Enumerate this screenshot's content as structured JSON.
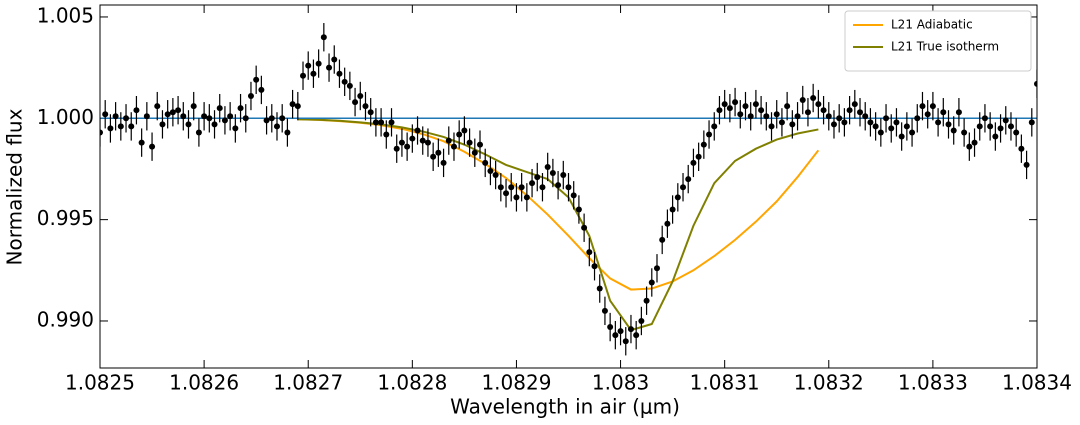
{
  "chart_data": {
    "type": "scatter",
    "xlabel": "Wavelength in air (μm)",
    "ylabel": "Normalized flux",
    "xlim": [
      1.0825,
      1.0834
    ],
    "ylim": [
      0.98768,
      1.00559
    ],
    "xticks": [
      1.0825,
      1.0826,
      1.0827,
      1.0828,
      1.0829,
      1.083,
      1.0831,
      1.0832,
      1.0833,
      1.0834
    ],
    "yticks": [
      {
        "value": 0.99,
        "label": "0.990"
      },
      0.995,
      {
        "value": 1,
        "label": "1.000"
      },
      1.005
    ],
    "hline": 1,
    "hline_color": "#1f77b4",
    "legend": "upper right",
    "points": {
      "color": "#000000",
      "yerr": 0.0007,
      "x": [
        1.0825,
        1.082505,
        1.08251,
        1.082515,
        1.08252,
        1.082525,
        1.08253,
        1.082535,
        1.08254,
        1.082545,
        1.08255,
        1.082555,
        1.08256,
        1.082565,
        1.08257,
        1.082575,
        1.08258,
        1.082585,
        1.08259,
        1.082595,
        1.0826,
        1.082605,
        1.08261,
        1.082615,
        1.08262,
        1.082625,
        1.08263,
        1.082635,
        1.08264,
        1.082645,
        1.08265,
        1.082655,
        1.08266,
        1.082665,
        1.08267,
        1.082675,
        1.08268,
        1.082685,
        1.08269,
        1.082695,
        1.0827,
        1.082705,
        1.08271,
        1.082715,
        1.08272,
        1.082725,
        1.08273,
        1.082735,
        1.08274,
        1.082745,
        1.08275,
        1.082755,
        1.08276,
        1.082765,
        1.08277,
        1.082775,
        1.08278,
        1.082785,
        1.08279,
        1.082795,
        1.0828,
        1.082805,
        1.08281,
        1.082815,
        1.08282,
        1.082825,
        1.08283,
        1.082835,
        1.08284,
        1.082845,
        1.08285,
        1.082855,
        1.08286,
        1.082865,
        1.08287,
        1.082875,
        1.08288,
        1.082885,
        1.08289,
        1.082895,
        1.0829,
        1.082905,
        1.08291,
        1.082915,
        1.08292,
        1.082925,
        1.08293,
        1.082935,
        1.08294,
        1.082945,
        1.08295,
        1.082955,
        1.08296,
        1.082965,
        1.08297,
        1.082975,
        1.08298,
        1.082985,
        1.08299,
        1.082995,
        1.083,
        1.083005,
        1.08301,
        1.083015,
        1.08302,
        1.083025,
        1.08303,
        1.083035,
        1.08304,
        1.083045,
        1.08305,
        1.083055,
        1.08306,
        1.083065,
        1.08307,
        1.083075,
        1.08308,
        1.083085,
        1.08309,
        1.083095,
        1.0831,
        1.083105,
        1.08311,
        1.083115,
        1.08312,
        1.083125,
        1.08313,
        1.083135,
        1.08314,
        1.083145,
        1.08315,
        1.083155,
        1.08316,
        1.083165,
        1.08317,
        1.083175,
        1.08318,
        1.083185,
        1.08319,
        1.083195,
        1.0832,
        1.083205,
        1.08321,
        1.083215,
        1.08322,
        1.083225,
        1.08323,
        1.083235,
        1.08324,
        1.083245,
        1.08325,
        1.083255,
        1.08326,
        1.083265,
        1.08327,
        1.083275,
        1.08328,
        1.083285,
        1.08329,
        1.083295,
        1.0833,
        1.083305,
        1.08331,
        1.083315,
        1.08332,
        1.083325,
        1.08333,
        1.083335,
        1.08334,
        1.083345,
        1.08335,
        1.083355,
        1.08336,
        1.083365,
        1.08337,
        1.083375,
        1.08338,
        1.083385,
        1.08339,
        1.083395,
        1.0834
      ],
      "values": [
        0.9993,
        1.0002,
        0.9995,
        1.0001,
        0.9996,
        1.0,
        0.9996,
        1.0004,
        0.9988,
        1.0001,
        0.9986,
        1.0006,
        0.9997,
        1.0002,
        1.0003,
        1.0004,
        1.0001,
        0.9997,
        1.0006,
        0.9993,
        1.0001,
        1.0,
        0.9997,
        1.0005,
        0.9999,
        1.0001,
        0.9995,
        1.0005,
        1.0,
        1.0011,
        1.0019,
        1.0014,
        0.9999,
        1.0,
        0.9996,
        1.0,
        0.9993,
        1.0007,
        1.0006,
        1.0021,
        1.0026,
        1.0022,
        1.0027,
        1.004,
        1.0025,
        1.0029,
        1.0022,
        1.0018,
        1.0016,
        1.0008,
        1.0011,
        1.0006,
        1.0003,
        0.9998,
        0.9998,
        0.9992,
        0.9998,
        0.9985,
        0.9988,
        0.9986,
        0.999,
        0.9994,
        0.9989,
        0.9988,
        0.9981,
        0.9983,
        0.9978,
        0.9989,
        0.9986,
        0.9992,
        0.9994,
        0.9988,
        0.9983,
        0.9987,
        0.9978,
        0.9974,
        0.9972,
        0.9966,
        0.9963,
        0.9966,
        0.9961,
        0.9966,
        0.9961,
        0.9968,
        0.9971,
        0.9966,
        0.9976,
        0.9973,
        0.9967,
        0.9972,
        0.9966,
        0.9962,
        0.9955,
        0.9946,
        0.9934,
        0.9927,
        0.9916,
        0.9905,
        0.9897,
        0.9893,
        0.9895,
        0.989,
        0.9896,
        0.9893,
        0.99,
        0.991,
        0.9919,
        0.9926,
        0.994,
        0.9948,
        0.9955,
        0.9961,
        0.9966,
        0.997,
        0.9978,
        0.9981,
        0.9987,
        0.9992,
        0.9996,
        1.0004,
        1.0007,
        1.0005,
        1.0008,
        1.0002,
        1.0006,
        1.0001,
        1.0007,
        1.0004,
        1.0001,
        0.9996,
        1.0002,
        0.9998,
        1.0006,
        0.9997,
        1.0001,
        1.0009,
        1.0003,
        1.001,
        1.0007,
        1.0004,
        1.0001,
        0.9997,
        1.0,
        0.9998,
        1.0004,
        1.0007,
        1.0003,
        1.0001,
        0.9998,
        0.9996,
        0.9993,
        1.0,
        0.9995,
        0.9998,
        0.9991,
        0.9996,
        0.9993,
        1.0,
        1.0006,
        1.0002,
        1.0006,
        0.9998,
        1.0003,
        0.9997,
        0.9994,
        1.0003,
        0.9993,
        0.9986,
        0.9988,
        0.9996,
        1.0,
        0.9996,
        0.9991,
        0.9995,
        0.9999,
        0.9996,
        0.9993,
        0.9985,
        0.9977,
        0.9998,
        1.0017
      ]
    },
    "series": [
      {
        "name": "L21 Adiabatic",
        "color": "#ffa500",
        "x": [
          1.08269,
          1.08271,
          1.08273,
          1.08275,
          1.08277,
          1.08279,
          1.08281,
          1.08283,
          1.08285,
          1.08287,
          1.08289,
          1.08291,
          1.08293,
          1.08295,
          1.08297,
          1.08299,
          1.08301,
          1.08303,
          1.08305,
          1.08307,
          1.08309,
          1.08311,
          1.08313,
          1.08315,
          1.08317,
          1.08319
        ],
        "values": [
          0.99995,
          0.99992,
          0.99986,
          0.99978,
          0.99966,
          0.99948,
          0.99922,
          0.99887,
          0.99835,
          0.99775,
          0.99705,
          0.9962,
          0.99525,
          0.9942,
          0.9931,
          0.9921,
          0.99155,
          0.9916,
          0.99195,
          0.9925,
          0.9932,
          0.994,
          0.9949,
          0.9959,
          0.9971,
          0.99842
        ]
      },
      {
        "name": "L21 True isotherm",
        "color": "#808000",
        "x": [
          1.08269,
          1.08271,
          1.08273,
          1.08275,
          1.08277,
          1.08279,
          1.08281,
          1.08283,
          1.08285,
          1.08287,
          1.08289,
          1.08291,
          1.08293,
          1.08295,
          1.08297,
          1.08299,
          1.08301,
          1.08303,
          1.08305,
          1.08307,
          1.08309,
          1.08311,
          1.08313,
          1.08315,
          1.08317,
          1.08319
        ],
        "values": [
          0.99995,
          0.99993,
          0.99988,
          0.9998,
          0.9997,
          0.99955,
          0.99935,
          0.99908,
          0.9987,
          0.99822,
          0.9977,
          0.99735,
          0.997,
          0.9961,
          0.9942,
          0.991,
          0.98955,
          0.98985,
          0.99195,
          0.9947,
          0.9968,
          0.9979,
          0.9985,
          0.99895,
          0.99925,
          0.99945
        ]
      }
    ]
  }
}
